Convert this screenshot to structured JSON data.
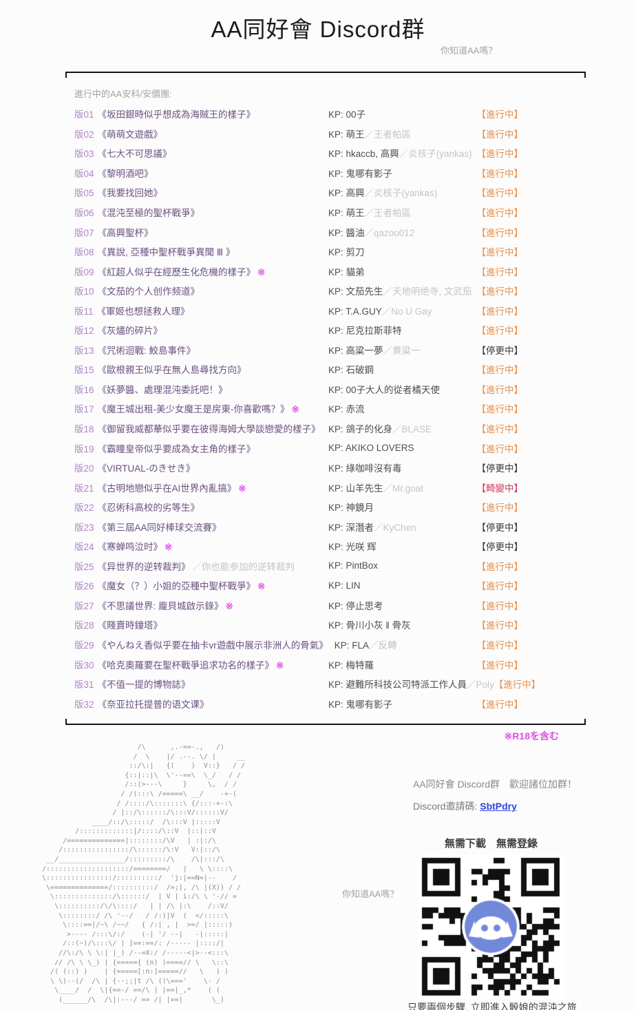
{
  "page": {
    "title": "AA同好會 Discord群",
    "subtitle": "你知道AA嗎？",
    "r18_note": "※R18を含む"
  },
  "colors": {
    "title-text": "#1b1b1b",
    "muted": "#a3a3a3",
    "thread-number": "#b184c4",
    "thread-title": "#6b5080",
    "r18-mark": "#e24fe2",
    "kp-main": "#4e4e4e",
    "kp-sub": "#c4c4c4",
    "badge-active": "#e88f4b",
    "badge-paused": "#3a3a3a",
    "badge-special": "#cd3a5f",
    "link": "#2f43e0",
    "rule": "#151515",
    "ascii-art": "#8f898d",
    "footer-text": "#3f3f3f",
    "discord-blurple": "#7289da"
  },
  "table": {
    "header": "進行中的AA安科/安價團:",
    "kp_prefix": "KP: ",
    "rows": [
      {
        "no": "版01",
        "title": "《坂田銀時似乎想成為海賊王的樣子》",
        "r18": "",
        "note": "",
        "kp": "00子",
        "kp_sub": "",
        "status": "【進行中】",
        "status_type": "active"
      },
      {
        "no": "版02",
        "title": "《萌萌文遊戲》",
        "r18": "",
        "note": "",
        "kp": "萌王",
        "kp_sub": "／王者帕區",
        "status": "【進行中】",
        "status_type": "active"
      },
      {
        "no": "版03",
        "title": "《七大不可思議》",
        "r18": "",
        "note": "",
        "kp": "hkaccb, 高興",
        "kp_sub": "／炎核子(yankas)",
        "status": "【進行中】",
        "status_type": "active"
      },
      {
        "no": "版04",
        "title": "《黎明酒吧》",
        "r18": "",
        "note": "",
        "kp": "鬼哪有影子",
        "kp_sub": "",
        "status": "【進行中】",
        "status_type": "active"
      },
      {
        "no": "版05",
        "title": "《我要找回她》",
        "r18": "",
        "note": "",
        "kp": "高興",
        "kp_sub": "／炎核子(yankas)",
        "status": "【進行中】",
        "status_type": "active"
      },
      {
        "no": "版06",
        "title": "《混沌至極的聖杯戰爭》",
        "r18": "",
        "note": "",
        "kp": "萌王",
        "kp_sub": "／王者帕區",
        "status": "【進行中】",
        "status_type": "active"
      },
      {
        "no": "版07",
        "title": "《高興聖杯》",
        "r18": "",
        "note": "",
        "kp": "醬油",
        "kp_sub": "／qazoo012",
        "status": "【進行中】",
        "status_type": "active"
      },
      {
        "no": "版08",
        "title": "《異說, 亞種中聖杯戰爭異聞 Ⅲ 》",
        "r18": "",
        "note": "",
        "kp": "剪刀",
        "kp_sub": "",
        "status": "【進行中】",
        "status_type": "active"
      },
      {
        "no": "版09",
        "title": "《紅超人似乎在經歷生化危機的樣子》",
        "r18": "※",
        "note": "",
        "kp": "貓弟",
        "kp_sub": "",
        "status": "【進行中】",
        "status_type": "active"
      },
      {
        "no": "版10",
        "title": "《文茄的个人创作频道》",
        "r18": "",
        "note": "",
        "kp": "文茄先生",
        "kp_sub": "／天地明绝寺, 文武茄",
        "status": "【進行中】",
        "status_type": "active"
      },
      {
        "no": "版11",
        "title": "《軍姬也想拯救人理》",
        "r18": "",
        "note": "",
        "kp": "T.A.GUY",
        "kp_sub": "／No U Gay",
        "status": "【進行中】",
        "status_type": "active"
      },
      {
        "no": "版12",
        "title": "《灰燼的碎片》",
        "r18": "",
        "note": "",
        "kp": "尼克拉斯菲特",
        "kp_sub": "",
        "status": "【進行中】",
        "status_type": "active"
      },
      {
        "no": "版13",
        "title": "《咒術迴戰: 鮫島事件》",
        "r18": "",
        "note": "",
        "kp": "高粱一夢",
        "kp_sub": "／黄粱一",
        "status": "【停更中】",
        "status_type": "paused"
      },
      {
        "no": "版15",
        "title": "《歐根親王似乎在無人島尋找方向》",
        "r18": "",
        "note": "",
        "kp": "石破鋼",
        "kp_sub": "",
        "status": "【進行中】",
        "status_type": "active"
      },
      {
        "no": "版16",
        "title": "《妖夢醬、處理混沌委託吧！》",
        "r18": "",
        "note": "",
        "kp": "00子大人的從者橘天使",
        "kp_sub": "",
        "status": "【進行中】",
        "status_type": "active"
      },
      {
        "no": "版17",
        "title": "《魔王城出租-美少女魔王是房東-你喜歡嗎？》",
        "r18": "※",
        "note": "",
        "kp": "赤流",
        "kp_sub": "",
        "status": "【進行中】",
        "status_type": "active"
      },
      {
        "no": "版18",
        "title": "《御留我威都華似乎要在彼得海姆大學談戀愛的樣子》",
        "r18": "",
        "note": "",
        "kp": "鴿子的化身",
        "kp_sub": "／BLASE",
        "status": "【進行中】",
        "status_type": "active"
      },
      {
        "no": "版19",
        "title": "《霸瞳皇帝似乎要成為女主角的樣子》",
        "r18": "",
        "note": "",
        "kp": "AKIKO LOVERS",
        "kp_sub": "",
        "status": "【進行中】",
        "status_type": "active"
      },
      {
        "no": "版20",
        "title": "《VIRTUAL-のきせき》",
        "r18": "",
        "note": "",
        "kp": "綠咖啡沒有毒",
        "kp_sub": "",
        "status": "【停更中】",
        "status_type": "paused"
      },
      {
        "no": "版21",
        "title": "《古明地戀似乎在AI世界內亂搞》",
        "r18": "※",
        "note": "",
        "kp": "山羊先生",
        "kp_sub": "／Mr.goat",
        "status": "【畸變中】",
        "status_type": "special"
      },
      {
        "no": "版22",
        "title": "《忍術科高校的劣等生》",
        "r18": "",
        "note": "",
        "kp": "神鏡月",
        "kp_sub": "",
        "status": "【進行中】",
        "status_type": "active"
      },
      {
        "no": "版23",
        "title": "《第三屆AA同好棒球交流賽》",
        "r18": "",
        "note": "",
        "kp": "深潛者",
        "kp_sub": "／KyChen",
        "status": "【停更中】",
        "status_type": "paused"
      },
      {
        "no": "版24",
        "title": "《寒蝉鸣泣时》",
        "r18": "※",
        "note": "",
        "kp": "光咲 辉",
        "kp_sub": "",
        "status": "【停更中】",
        "status_type": "paused"
      },
      {
        "no": "版25",
        "title": "《异世界的逆转裁判》",
        "r18": "",
        "note": "／你也能参加的逆转裁判",
        "kp": "PintBox",
        "kp_sub": "",
        "status": "【進行中】",
        "status_type": "active"
      },
      {
        "no": "版26",
        "title": "《魔女（？）小姐的亞種中聖杯戰爭》",
        "r18": "※",
        "note": "",
        "kp": "LIN",
        "kp_sub": "",
        "status": "【進行中】",
        "status_type": "active"
      },
      {
        "no": "版27",
        "title": "《不思議世界: 龐貝城啟示錄》",
        "r18": "※",
        "note": "",
        "kp": "停止思考",
        "kp_sub": "",
        "status": "【進行中】",
        "status_type": "active"
      },
      {
        "no": "版28",
        "title": "《賤賣時鐘塔》",
        "r18": "",
        "note": "",
        "kp": "骨川小灰 ‖ 骨灰",
        "kp_sub": "",
        "status": "【進行中】",
        "status_type": "active"
      },
      {
        "no": "版29",
        "title": "《やんねえ香似乎要在抽卡vr遊戲中展示非洲人的骨氣》",
        "r18": "",
        "note": "",
        "kp": "FLA",
        "kp_sub": "／反轉",
        "status": "【進行中】",
        "status_type": "active"
      },
      {
        "no": "版30",
        "title": "《哈克奧羅要在聖杯戰爭追求功名的樣子》",
        "r18": "※",
        "note": "",
        "kp": "梅特羅",
        "kp_sub": "",
        "status": "【進行中】",
        "status_type": "active"
      },
      {
        "no": "版31",
        "title": "《不值一提的博物誌》",
        "r18": "",
        "note": "",
        "kp": "避難所科技公司特派工作人員",
        "kp_sub": "／Poly",
        "status": "【進行中】",
        "status_type": "active"
      },
      {
        "no": "版32",
        "title": "《奈亚拉托提普的语文课》",
        "r18": "",
        "note": "",
        "kp": "鬼哪有影子",
        "kp_sub": "",
        "status": "【進行中】",
        "status_type": "active"
      }
    ]
  },
  "footer": {
    "invite_heading": "AA同好會 Discord群　歡迎諸位加群！",
    "invite_label": "Discord邀請碼: ",
    "invite_code": "SbtPdry",
    "no_download": "無需下載　無需登錄",
    "aa_caption": "你知道AA嗎？",
    "qr_caption": "只要兩個步驟, 立即進入骰娘的混沌之旅",
    "ascii_art": [
      "                        /\\      ,.-==-.,   /)",
      "                       /  \\    |/ .--. \\/ |     __",
      "                      ::/\\:|   {(    )  V::}   / /",
      "                     {::|::|\\  \\'--==\\  \\_/   / /",
      "                     /::(>---\\     }     \\,  / /",
      "                    / /(:::\\ /=====\\ __/    -+-(",
      "                   / /::::/\\:::::::\\ {/:::-+-:\\",
      "                  / |::/\\::::::/\\:::V/::::::V/",
      "             ____/::/\\:::::/  /\\:::V |:::::V",
      "         /:::::::::::::|/::::/\\::V  |::|::V",
      "      /==============|::::::::/\\V   | :|:/\\",
      "     /::::::::::::::::/\\::::::/\\:V   V:|::/\\",
      "  __/________________/:::::::::/\\    /\\|:::/\\",
      " /::::::::::::::::::::/========/   |   \\ \\::::\\",
      " \\::::::::::::::::/::::::::::/  'j:|==N=|--    /",
      "  \\==============/::::::::::/  /=;|, /\\ |(X)) / /",
      "   \\::::::::::::::/\\::::::/  | V | i:/\\ \\ '-// =",
      "    \\::::::::::/\\/\\::::/   | | /\\ |:\\    /::V/",
      "     \\::::::::/ /\\ '--/   / /:)|V  (  </:::::\\",
      "      \\::::==|/~\\ /~~/   { /:| , |  >=/ |:::::)",
      "       >---- /:::\\/:/    (-| '/ --|   -|:::::|",
      "      /::(~)/\\:::\\/ | ]==:==/: /----- |::::/|",
      "     //\\:/\\ \\ \\:| |_) /--=X:/ /-----<|>--<:::\\",
      "    // /\\ \\ \\_) | {====={ (n) )====// \\   \\::\\",
      "   /( (::) )    | {=====[:n:]=====//   \\   ) )",
      "   \\ \\)--(/  /\\ | {--;;|t /\\ ()\\==='    \\- /",
      "    \\____/  /  \\|{==-/ ==/\\ | |==|_,*    ( (",
      "     (______/\\  /\\|:---/ == /| |==|       \\_)"
    ]
  }
}
